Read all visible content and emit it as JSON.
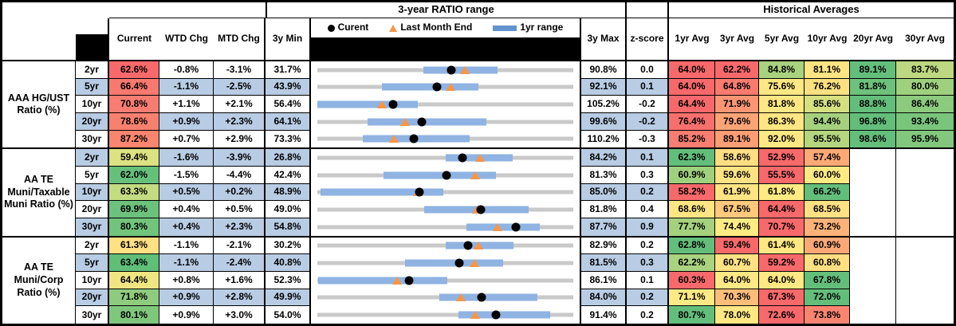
{
  "header": {
    "ratio_range_title": "3-year RATIO range",
    "historical_title": "Historical Averages",
    "legend": {
      "current": "Curent",
      "last_month_end": "Last Month End",
      "yr1_range": "1yr range"
    },
    "columns": {
      "current": "Current",
      "wtd": "WTD Chg",
      "mtd": "MTD Chg",
      "min": "3y Min",
      "max": "3y Max",
      "zscore": "z-score"
    },
    "avg_columns": [
      "1yr Avg",
      "3yr Avg",
      "5yr Avg",
      "10yr Avg",
      "20yr Avg",
      "30yr Avg"
    ]
  },
  "colors": {
    "band_blue": "#B8CCE4",
    "range_bar_blue": "#8FB3E2",
    "legend_bar_blue": "#6394CE",
    "track_gray": "#C9C9C9",
    "marker_orange": "#F79646",
    "marker_black": "#000000",
    "scale_red": "#F8696B",
    "scale_yellow": "#FFEB84",
    "scale_green": "#63BE7B"
  },
  "chart_data": {
    "type": "table",
    "note": "Each row embeds a horizontal range chart: gray track spans 3y Min to 3y Max, blue bar is 1yr range, black dot is Current, orange triangle is Last Month End. Values in percent.",
    "groups": [
      {
        "label": "AAA HG/UST Ratio (%)",
        "rows": [
          {
            "tenor": "2yr",
            "current": "62.6%",
            "current_bg": "#F8696B",
            "wtd": "-0.8%",
            "mtd": "-3.1%",
            "min": "31.7%",
            "max": "90.8%",
            "zscore": "0.0",
            "chart": {
              "min": 31.7,
              "max": 90.8,
              "current": 62.6,
              "lme": 65.7,
              "bar": [
                56.2,
                73.4
              ]
            },
            "avgs": [
              "64.0%",
              "62.2%",
              "84.8%",
              "81.1%",
              "89.1%",
              "83.7%"
            ],
            "avg_bgs": [
              "#F8696B",
              "#F8696B",
              "#A9D27F",
              "#FFE483",
              "#63BE7B",
              "#BDD880"
            ]
          },
          {
            "tenor": "5yr",
            "current": "66.4%",
            "current_bg": "#F7796F",
            "wtd": "-1.1%",
            "mtd": "-2.5%",
            "min": "43.9%",
            "max": "92.1%",
            "zscore": "0.1",
            "chart": {
              "min": 43.9,
              "max": 92.1,
              "current": 66.4,
              "lme": 68.9,
              "bar": [
                56.0,
                74.3
              ]
            },
            "avgs": [
              "64.0%",
              "64.8%",
              "75.6%",
              "76.2%",
              "81.8%",
              "80.0%"
            ],
            "avg_bgs": [
              "#F8696B",
              "#F87B70",
              "#FFE884",
              "#FBE081",
              "#6DC17C",
              "#9FD07E"
            ]
          },
          {
            "tenor": "10yr",
            "current": "70.8%",
            "current_bg": "#F77D72",
            "wtd": "+1.1%",
            "mtd": "+2.1%",
            "min": "56.4%",
            "max": "105.2%",
            "zscore": "-0.2",
            "chart": {
              "min": 56.4,
              "max": 105.2,
              "current": 70.8,
              "lme": 68.7,
              "bar": [
                56.4,
                75.5
              ]
            },
            "avgs": [
              "64.4%",
              "71.9%",
              "81.8%",
              "85.6%",
              "88.8%",
              "86.4%"
            ],
            "avg_bgs": [
              "#F8696B",
              "#FA9674",
              "#FFE783",
              "#D5E081",
              "#63BE7B",
              "#8CCA7D"
            ]
          },
          {
            "tenor": "20yr",
            "current": "78.6%",
            "current_bg": "#F7806F",
            "wtd": "+0.9%",
            "mtd": "+2.3%",
            "min": "64.1%",
            "max": "99.6%",
            "zscore": "-0.2",
            "chart": {
              "min": 64.1,
              "max": 99.6,
              "current": 78.6,
              "lme": 76.3,
              "bar": [
                71.1,
                87.5
              ]
            },
            "avgs": [
              "76.4%",
              "79.6%",
              "86.3%",
              "94.4%",
              "96.8%",
              "93.4%"
            ],
            "avg_bgs": [
              "#F8706D",
              "#FBA476",
              "#FFE683",
              "#A5D17F",
              "#63BE7B",
              "#79C57C"
            ]
          },
          {
            "tenor": "30yr",
            "current": "87.2%",
            "current_bg": "#F8856F",
            "wtd": "+0.7%",
            "mtd": "+2.9%",
            "min": "73.3%",
            "max": "110.2%",
            "zscore": "-0.3",
            "chart": {
              "min": 73.3,
              "max": 110.2,
              "current": 87.2,
              "lme": 84.3,
              "bar": [
                79.9,
                95.2
              ]
            },
            "avgs": [
              "85.2%",
              "89.1%",
              "92.0%",
              "95.5%",
              "98.6%",
              "95.9%"
            ],
            "avg_bgs": [
              "#F87E71",
              "#FB9D75",
              "#FFE884",
              "#B5D67F",
              "#63BE7B",
              "#82C77D"
            ]
          }
        ]
      },
      {
        "label": "AA TE Muni/Taxable Muni Ratio (%)",
        "rows": [
          {
            "tenor": "2yr",
            "current": "59.4%",
            "current_bg": "#DCE182",
            "wtd": "-1.6%",
            "mtd": "-3.9%",
            "min": "26.8%",
            "max": "84.2%",
            "zscore": "0.1",
            "chart": {
              "min": 26.8,
              "max": 84.2,
              "current": 59.4,
              "lme": 63.3,
              "bar": [
                55.5,
                70.6
              ]
            },
            "avgs": [
              "62.3%",
              "58.6%",
              "52.9%",
              "57.4%"
            ],
            "avg_bgs": [
              "#63BE7B",
              "#FFDD82",
              "#F8696B",
              "#FCA977"
            ]
          },
          {
            "tenor": "5yr",
            "current": "62.0%",
            "current_bg": "#66C07C",
            "wtd": "-1.5%",
            "mtd": "-4.4%",
            "min": "42.4%",
            "max": "81.3%",
            "zscore": "0.3",
            "chart": {
              "min": 42.4,
              "max": 81.3,
              "current": 62.0,
              "lme": 66.4,
              "bar": [
                52.4,
                69.5
              ]
            },
            "avgs": [
              "60.9%",
              "59.6%",
              "55.5%",
              "60.0%"
            ],
            "avg_bgs": [
              "#9FD07E",
              "#FFE383",
              "#F8696B",
              "#FFEA84"
            ]
          },
          {
            "tenor": "10yr",
            "current": "63.3%",
            "current_bg": "#C3DB81",
            "wtd": "+0.5%",
            "mtd": "+0.2%",
            "min": "48.9%",
            "max": "85.0%",
            "zscore": "0.2",
            "chart": {
              "min": 48.9,
              "max": 85.0,
              "current": 63.3,
              "lme": 63.1,
              "bar": [
                49.3,
                66.7
              ]
            },
            "avgs": [
              "58.2%",
              "61.9%",
              "61.8%",
              "66.2%"
            ],
            "avg_bgs": [
              "#F8696B",
              "#FFE483",
              "#FFEA84",
              "#63BE7B"
            ]
          },
          {
            "tenor": "20yr",
            "current": "69.9%",
            "current_bg": "#6CC27D",
            "wtd": "+0.4%",
            "mtd": "+0.5%",
            "min": "49.0%",
            "max": "81.8%",
            "zscore": "0.4",
            "chart": {
              "min": 49.0,
              "max": 81.8,
              "current": 69.9,
              "lme": 69.4,
              "bar": [
                62.7,
                76.1
              ]
            },
            "avgs": [
              "68.6%",
              "67.5%",
              "64.4%",
              "68.5%"
            ],
            "avg_bgs": [
              "#FFE683",
              "#FEC97D",
              "#F8696B",
              "#FFE183"
            ]
          },
          {
            "tenor": "30yr",
            "current": "80.3%",
            "current_bg": "#72C37C",
            "wtd": "+0.4%",
            "mtd": "+2.3%",
            "min": "54.8%",
            "max": "87.7%",
            "zscore": "0.9",
            "chart": {
              "min": 54.8,
              "max": 87.7,
              "current": 80.3,
              "lme": 78.0,
              "bar": [
                74.0,
                83.4
              ]
            },
            "avgs": [
              "77.7%",
              "74.4%",
              "70.7%",
              "73.2%"
            ],
            "avg_bgs": [
              "#A5D17F",
              "#FFEB84",
              "#F8696B",
              "#FCB278"
            ]
          }
        ]
      },
      {
        "label": "AA TE Muni/Corp Ratio (%)",
        "rows": [
          {
            "tenor": "2yr",
            "current": "61.3%",
            "current_bg": "#FFE083",
            "wtd": "-1.1%",
            "mtd": "-2.1%",
            "min": "30.2%",
            "max": "82.9%",
            "zscore": "0.2",
            "chart": {
              "min": 30.2,
              "max": 82.9,
              "current": 61.3,
              "lme": 63.4,
              "bar": [
                56.6,
                70.6
              ]
            },
            "avgs": [
              "62.8%",
              "59.4%",
              "61.4%",
              "60.9%"
            ],
            "avg_bgs": [
              "#63BE7B",
              "#F8696B",
              "#FFE883",
              "#FCA876"
            ]
          },
          {
            "tenor": "5yr",
            "current": "63.4%",
            "current_bg": "#5FBE78",
            "wtd": "-1.1%",
            "mtd": "-2.4%",
            "min": "40.8%",
            "max": "81.5%",
            "zscore": "0.3",
            "chart": {
              "min": 40.8,
              "max": 81.5,
              "current": 63.4,
              "lme": 65.8,
              "bar": [
                54.7,
                70.4
              ]
            },
            "avgs": [
              "62.2%",
              "60.7%",
              "59.2%",
              "60.8%"
            ],
            "avg_bgs": [
              "#A9D37F",
              "#FFE283",
              "#F8696B",
              "#FFDF82"
            ]
          },
          {
            "tenor": "10yr",
            "current": "64.4%",
            "current_bg": "#EFE583",
            "wtd": "+0.8%",
            "mtd": "+1.6%",
            "min": "52.3%",
            "max": "86.1%",
            "zscore": "0.1",
            "chart": {
              "min": 52.3,
              "max": 86.1,
              "current": 64.4,
              "lme": 62.8,
              "bar": [
                52.4,
                69.5
              ]
            },
            "avgs": [
              "60.3%",
              "64.0%",
              "64.0%",
              "67.8%"
            ],
            "avg_bgs": [
              "#F8696B",
              "#FFE984",
              "#FFE984",
              "#63BE7B"
            ]
          },
          {
            "tenor": "20yr",
            "current": "71.8%",
            "current_bg": "#8FCB7E",
            "wtd": "+0.9%",
            "mtd": "+2.8%",
            "min": "49.9%",
            "max": "84.0%",
            "zscore": "0.2",
            "chart": {
              "min": 49.9,
              "max": 84.0,
              "current": 71.8,
              "lme": 69.0,
              "bar": [
                66.1,
                79.2
              ]
            },
            "avgs": [
              "71.1%",
              "70.3%",
              "67.3%",
              "72.0%"
            ],
            "avg_bgs": [
              "#FFE984",
              "#FDBD7A",
              "#F8696B",
              "#63BE7B"
            ]
          },
          {
            "tenor": "30yr",
            "current": "80.1%",
            "current_bg": "#7FC77D",
            "wtd": "+0.9%",
            "mtd": "+3.0%",
            "min": "54.0%",
            "max": "91.4%",
            "zscore": "0.2",
            "chart": {
              "min": 54.0,
              "max": 91.4,
              "current": 80.1,
              "lme": 77.1,
              "bar": [
                74.6,
                88.0
              ]
            },
            "avgs": [
              "80.7%",
              "78.0%",
              "72.6%",
              "73.8%"
            ],
            "avg_bgs": [
              "#63BE7B",
              "#FFE883",
              "#F8696B",
              "#F98570"
            ]
          }
        ]
      }
    ]
  }
}
